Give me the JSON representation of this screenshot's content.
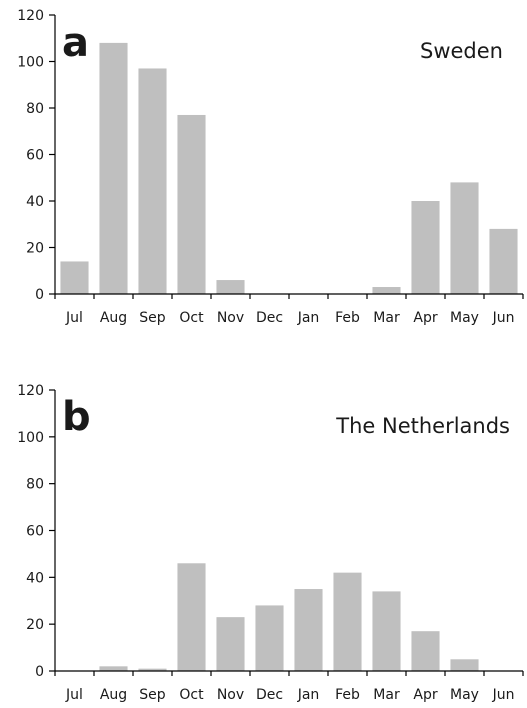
{
  "chart_data": [
    {
      "type": "bar",
      "panel_label": "a",
      "title": "Sweden",
      "categories": [
        "Jul",
        "Aug",
        "Sep",
        "Oct",
        "Nov",
        "Dec",
        "Jan",
        "Feb",
        "Mar",
        "Apr",
        "May",
        "Jun"
      ],
      "values": [
        14,
        108,
        97,
        77,
        6,
        0,
        0,
        0,
        3,
        40,
        48,
        28
      ],
      "xlabel": "",
      "ylabel": "",
      "ylim": [
        0,
        120
      ],
      "yticks": [
        0,
        20,
        40,
        60,
        80,
        100,
        120
      ],
      "bar_color": "#bfbfbf",
      "grid": false,
      "legend": "none"
    },
    {
      "type": "bar",
      "panel_label": "b",
      "title": "The Netherlands",
      "categories": [
        "Jul",
        "Aug",
        "Sep",
        "Oct",
        "Nov",
        "Dec",
        "Jan",
        "Feb",
        "Mar",
        "Apr",
        "May",
        "Jun"
      ],
      "values": [
        0,
        2,
        1,
        46,
        23,
        28,
        35,
        42,
        34,
        17,
        5,
        0
      ],
      "xlabel": "",
      "ylabel": "",
      "ylim": [
        0,
        120
      ],
      "yticks": [
        0,
        20,
        40,
        60,
        80,
        100,
        120
      ],
      "bar_color": "#bfbfbf",
      "grid": false,
      "legend": "none"
    }
  ]
}
